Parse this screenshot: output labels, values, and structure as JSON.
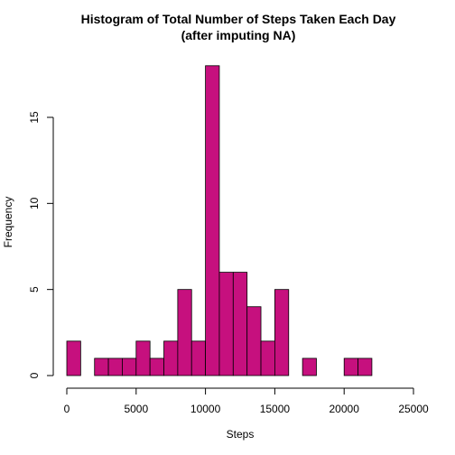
{
  "chart_data": {
    "type": "bar",
    "title": "Histogram of Total Number of Steps Taken Each Day",
    "subtitle": "(after imputing NA)",
    "xlabel": "Steps",
    "ylabel": "Frequency",
    "bin_width": 1000,
    "bin_start": 0,
    "values": [
      2,
      0,
      1,
      1,
      1,
      2,
      1,
      2,
      5,
      2,
      18,
      6,
      6,
      4,
      2,
      5,
      0,
      1,
      0,
      0,
      1,
      1,
      0,
      0,
      0
    ],
    "xlim": [
      0,
      25000
    ],
    "ylim": [
      0,
      18
    ],
    "x_ticks": [
      0,
      5000,
      10000,
      15000,
      20000,
      25000
    ],
    "x_tick_labels": [
      "0",
      "5000",
      "10000",
      "15000",
      "20000",
      "25000"
    ],
    "y_ticks": [
      0,
      5,
      10,
      15
    ],
    "y_tick_labels": [
      "0",
      "5",
      "10",
      "15"
    ],
    "bar_color": "#C6107E",
    "bar_border": "#000000",
    "grid": false
  }
}
